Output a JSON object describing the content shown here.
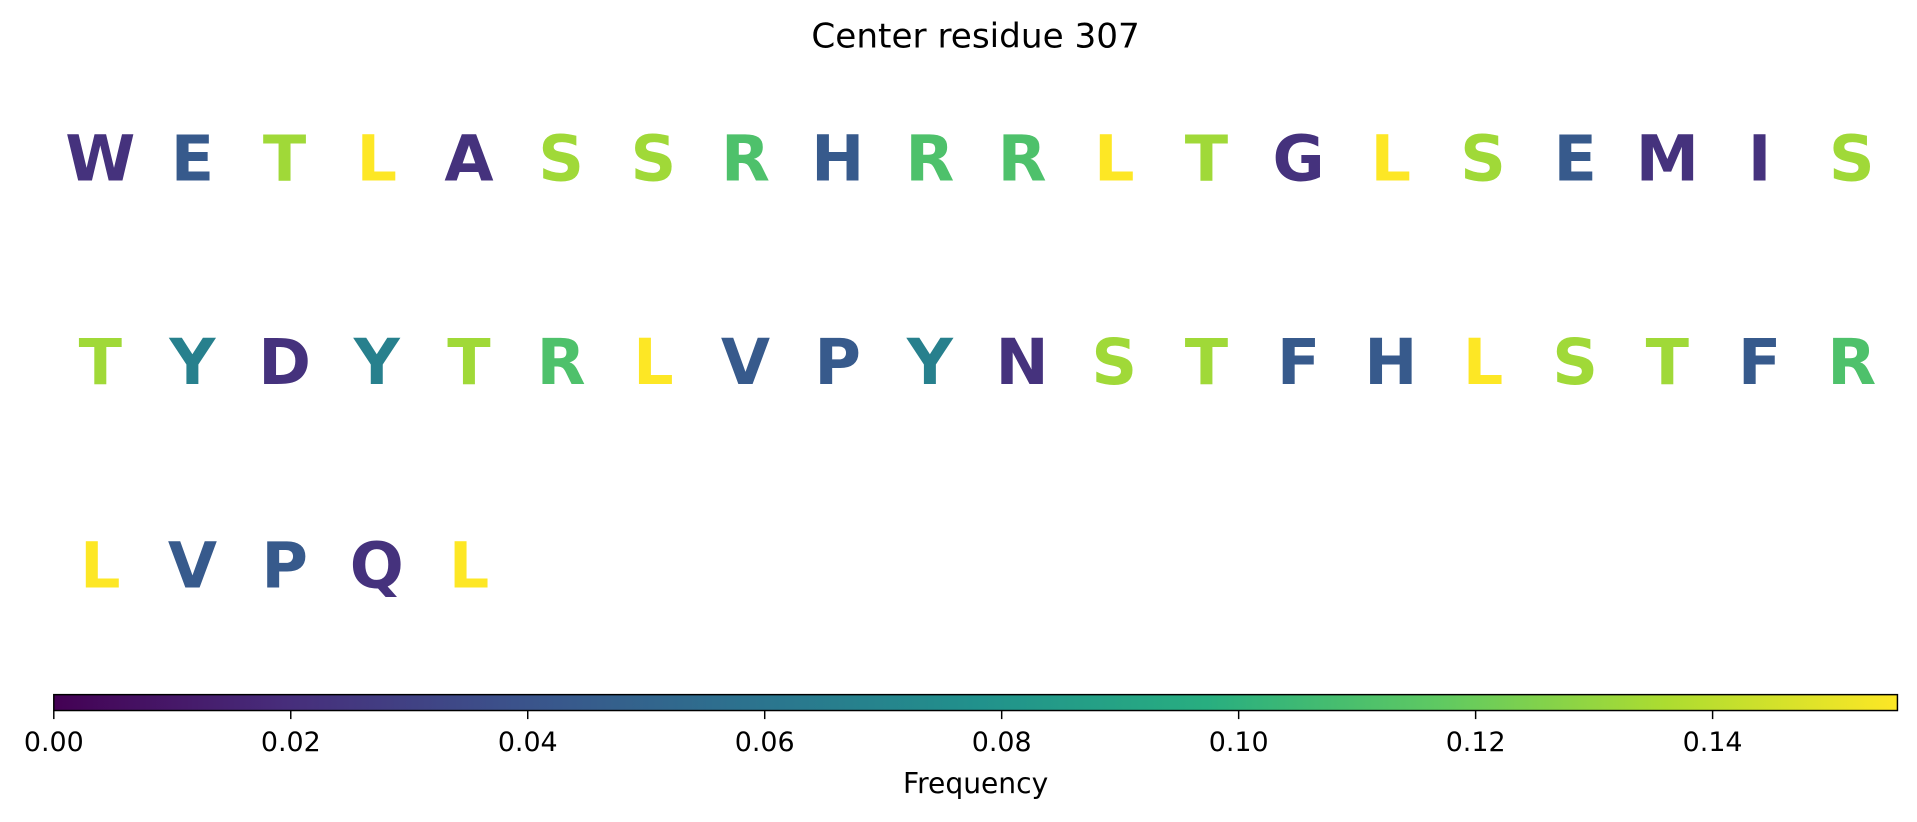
{
  "chart_data": {
    "type": "colored-sequence",
    "title": "Center residue 307",
    "residues": [
      "W",
      "E",
      "T",
      "L",
      "A",
      "S",
      "S",
      "R",
      "H",
      "R",
      "R",
      "L",
      "T",
      "G",
      "L",
      "S",
      "E",
      "M",
      "I",
      "S",
      "T",
      "Y",
      "D",
      "Y",
      "T",
      "R",
      "L",
      "V",
      "P",
      "Y",
      "N",
      "S",
      "T",
      "F",
      "H",
      "L",
      "S",
      "T",
      "F",
      "R",
      "L",
      "V",
      "P",
      "Q",
      "L"
    ],
    "values": [
      0.022,
      0.044,
      0.133,
      0.156,
      0.022,
      0.133,
      0.133,
      0.111,
      0.044,
      0.111,
      0.111,
      0.156,
      0.133,
      0.022,
      0.156,
      0.133,
      0.044,
      0.022,
      0.022,
      0.133,
      0.133,
      0.067,
      0.022,
      0.067,
      0.133,
      0.111,
      0.156,
      0.044,
      0.044,
      0.067,
      0.022,
      0.133,
      0.133,
      0.044,
      0.044,
      0.156,
      0.133,
      0.133,
      0.044,
      0.111,
      0.156,
      0.044,
      0.044,
      0.022,
      0.156
    ],
    "colormap": "viridis",
    "colorbar_label": "Frequency",
    "xlim": [
      0,
      0.1556
    ],
    "xticks": [
      {
        "value": 0,
        "label": "0.00"
      },
      0.02,
      0.04,
      0.06,
      0.08,
      {
        "value": 0.1,
        "label": "0.10"
      },
      0.12,
      0.14
    ]
  }
}
